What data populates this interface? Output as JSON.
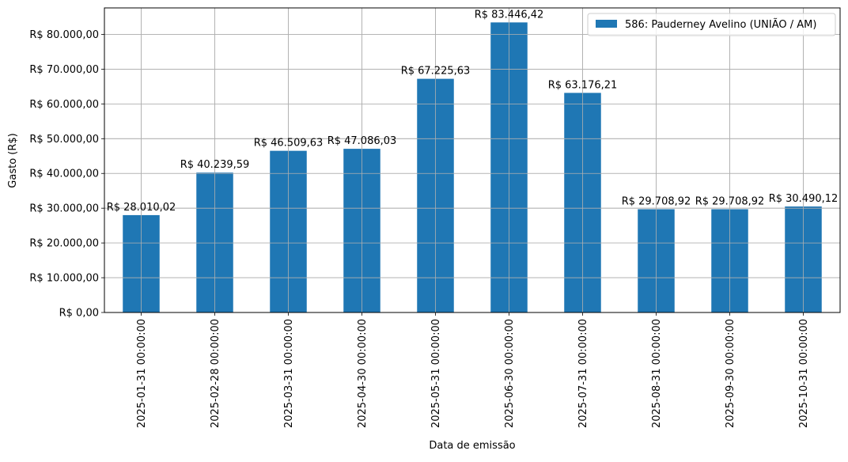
{
  "chart_data": {
    "type": "bar",
    "categories": [
      "2025-01-31 00:00:00",
      "2025-02-28 00:00:00",
      "2025-03-31 00:00:00",
      "2025-04-30 00:00:00",
      "2025-05-31 00:00:00",
      "2025-06-30 00:00:00",
      "2025-07-31 00:00:00",
      "2025-08-31 00:00:00",
      "2025-09-30 00:00:00",
      "2025-10-31 00:00:00"
    ],
    "series": [
      {
        "name": "586: Pauderney Avelino (UNIÃO / AM)",
        "color": "#1f77b4",
        "values": [
          28010.02,
          40239.59,
          46509.63,
          47086.03,
          67225.63,
          83446.42,
          63176.21,
          29708.92,
          29708.92,
          30490.12
        ],
        "data_labels": [
          "R$ 28.010,02",
          "R$ 40.239,59",
          "R$ 46.509,63",
          "R$ 47.086,03",
          "R$ 67.225,63",
          "R$ 83.446,42",
          "R$ 63.176,21",
          "R$ 29.708,92",
          "R$ 29.708,92",
          "R$ 30.490,12"
        ]
      }
    ],
    "xlabel": "Data de emissão",
    "ylabel": "Gasto (R$)",
    "ylim": [
      0,
      87618.74
    ],
    "y_ticks": [
      0,
      10000,
      20000,
      30000,
      40000,
      50000,
      60000,
      70000,
      80000
    ],
    "y_tick_labels": [
      "R$ 0,00",
      "R$ 10.000,00",
      "R$ 20.000,00",
      "R$ 30.000,00",
      "R$ 40.000,00",
      "R$ 50.000,00",
      "R$ 60.000,00",
      "R$ 70.000,00",
      "R$ 80.000,00"
    ],
    "grid": true,
    "legend_position": "top-right"
  }
}
